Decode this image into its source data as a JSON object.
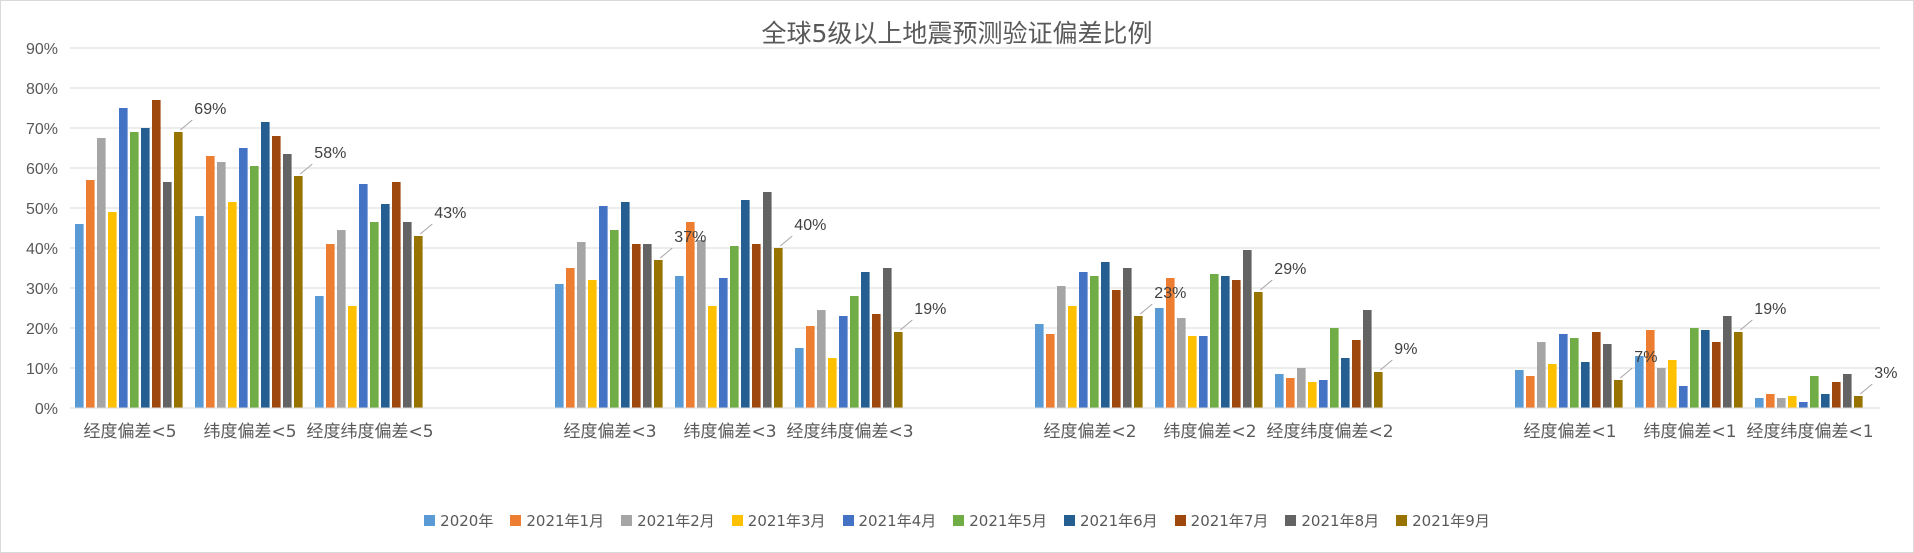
{
  "chart_data": {
    "type": "bar",
    "title": "全球5级以上地震预测验证偏差比例",
    "xlabel": "",
    "ylabel": "",
    "ylim": [
      0,
      90
    ],
    "y_ticks": [
      "0%",
      "10%",
      "20%",
      "30%",
      "40%",
      "50%",
      "60%",
      "70%",
      "80%",
      "90%"
    ],
    "grid": true,
    "legend_position": "bottom",
    "groups": [
      {
        "categories": [
          "经度偏差<5",
          "纬度偏差<5",
          "经度纬度偏差<5"
        ]
      },
      {
        "categories": [
          "经度偏差<3",
          "纬度偏差<3",
          "经度纬度偏差<3"
        ]
      },
      {
        "categories": [
          "经度偏差<2",
          "纬度偏差<2",
          "经度纬度偏差<2"
        ]
      },
      {
        "categories": [
          "经度偏差<1",
          "纬度偏差<1",
          "经度纬度偏差<1"
        ]
      }
    ],
    "categories": [
      "经度偏差<5",
      "纬度偏差<5",
      "经度纬度偏差<5",
      "经度偏差<3",
      "纬度偏差<3",
      "经度纬度偏差<3",
      "经度偏差<2",
      "纬度偏差<2",
      "经度纬度偏差<2",
      "经度偏差<1",
      "纬度偏差<1",
      "经度纬度偏差<1"
    ],
    "series": [
      {
        "name": "2020年",
        "color": "#5b9bd5",
        "values": [
          46,
          48,
          28,
          31,
          33,
          15,
          21,
          25,
          8.5,
          9.5,
          13,
          2.5
        ]
      },
      {
        "name": "2021年1月",
        "color": "#ed7d31",
        "values": [
          57,
          63,
          41,
          35,
          46.5,
          20.5,
          18.5,
          32.5,
          7.5,
          8,
          19.5,
          3.5
        ]
      },
      {
        "name": "2021年2月",
        "color": "#a5a5a5",
        "values": [
          67.5,
          61.5,
          44.5,
          41.5,
          42,
          24.5,
          30.5,
          22.5,
          10,
          16.5,
          10,
          2.5
        ]
      },
      {
        "name": "2021年3月",
        "color": "#ffc000",
        "values": [
          49,
          51.5,
          25.5,
          32,
          25.5,
          12.5,
          25.5,
          18,
          6.5,
          11,
          12,
          3
        ]
      },
      {
        "name": "2021年4月",
        "color": "#4472c4",
        "values": [
          75,
          65,
          56,
          50.5,
          32.5,
          23,
          34,
          18,
          7,
          18.5,
          5.5,
          1.5
        ]
      },
      {
        "name": "2021年5月",
        "color": "#70ad47",
        "values": [
          69,
          60.5,
          46.5,
          44.5,
          40.5,
          28,
          33,
          33.5,
          20,
          17.5,
          20,
          8
        ]
      },
      {
        "name": "2021年6月",
        "color": "#255e91",
        "values": [
          70,
          71.5,
          51,
          51.5,
          52,
          34,
          36.5,
          33,
          12.5,
          11.5,
          19.5,
          3.5
        ]
      },
      {
        "name": "2021年7月",
        "color": "#9e480e",
        "values": [
          77,
          68,
          56.5,
          41,
          41,
          23.5,
          29.5,
          32,
          17,
          19,
          16.5,
          6.5
        ]
      },
      {
        "name": "2021年8月",
        "color": "#636363",
        "values": [
          56.5,
          63.5,
          46.5,
          41,
          54,
          35,
          35,
          39.5,
          24.5,
          16,
          23,
          8.5
        ]
      },
      {
        "name": "2021年9月",
        "color": "#997300",
        "values": [
          69,
          58,
          43,
          37,
          40,
          19,
          23,
          29,
          9,
          7,
          19,
          3
        ]
      }
    ],
    "data_labels": [
      {
        "series": "2021年9月",
        "category_index": 0,
        "text": "69%"
      },
      {
        "series": "2021年9月",
        "category_index": 1,
        "text": "58%"
      },
      {
        "series": "2021年9月",
        "category_index": 2,
        "text": "43%"
      },
      {
        "series": "2021年9月",
        "category_index": 3,
        "text": "37%"
      },
      {
        "series": "2021年9月",
        "category_index": 4,
        "text": "40%"
      },
      {
        "series": "2021年9月",
        "category_index": 5,
        "text": "19%"
      },
      {
        "series": "2021年9月",
        "category_index": 6,
        "text": "23%"
      },
      {
        "series": "2021年9月",
        "category_index": 7,
        "text": "29%"
      },
      {
        "series": "2021年9月",
        "category_index": 8,
        "text": "9%"
      },
      {
        "series": "2021年9月",
        "category_index": 9,
        "text": "7%"
      },
      {
        "series": "2021年9月",
        "category_index": 10,
        "text": "19%"
      },
      {
        "series": "2021年9月",
        "category_index": 11,
        "text": "3%"
      }
    ]
  }
}
